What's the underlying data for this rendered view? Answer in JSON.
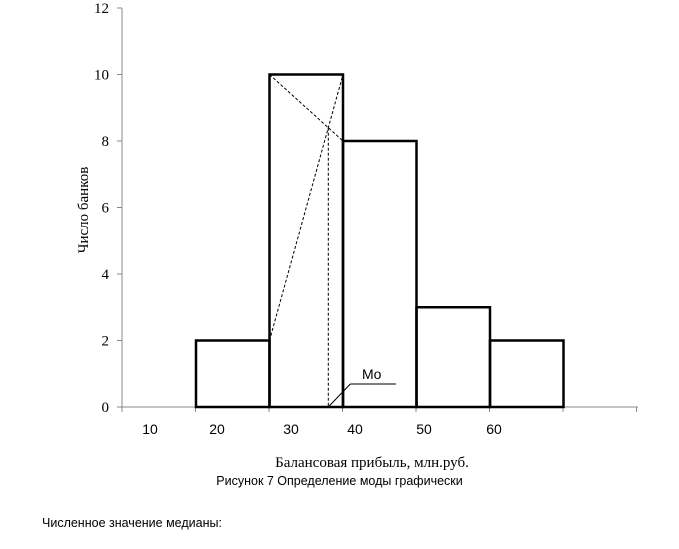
{
  "chart_data": {
    "type": "bar",
    "title": "",
    "xlabel": "Балансовая прибыль, млн.руб.",
    "ylabel": "Число банков",
    "ylim": [
      0,
      12
    ],
    "yticks": [
      "0",
      "2",
      "4",
      "6",
      "8",
      "10",
      "12"
    ],
    "xtick_labels": [
      "10",
      "20",
      "30",
      "40",
      "50",
      "60"
    ],
    "categories": [
      "20-30",
      "30-40",
      "40-50",
      "50-60",
      "60-70"
    ],
    "values": [
      2,
      10,
      8,
      3,
      2
    ],
    "mode_label": "Mo",
    "grid": false
  },
  "caption": "Рисунок 7 Определение моды графически",
  "footer_text": "Численное значение медианы:"
}
